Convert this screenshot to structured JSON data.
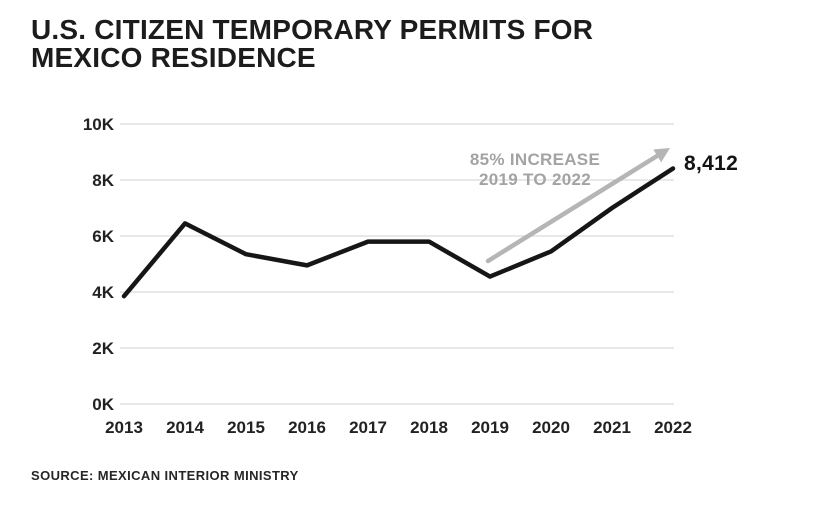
{
  "header": {
    "title_line1": "U.S. CITIZEN TEMPORARY PERMITS FOR",
    "title_line2": "MEXICO RESIDENCE"
  },
  "annotation": {
    "line1": "85% INCREASE",
    "line2": "2019 TO 2022"
  },
  "end_label": "8,412",
  "footer": {
    "source": "SOURCE: MEXICAN INTERIOR MINISTRY"
  },
  "chart_data": {
    "type": "line",
    "title": "U.S. CITIZEN TEMPORARY PERMITS FOR MEXICO RESIDENCE",
    "source": "SOURCE: MEXICAN INTERIOR MINISTRY",
    "categories": [
      "2013",
      "2014",
      "2015",
      "2016",
      "2017",
      "2018",
      "2019",
      "2020",
      "2021",
      "2022"
    ],
    "values": [
      3850,
      6450,
      5350,
      4950,
      5800,
      5800,
      4550,
      5450,
      7000,
      8412
    ],
    "end_label": "8,412",
    "annotation_text": [
      "85% INCREASE",
      "2019 TO 2022"
    ],
    "annotation_refers_to": "rise from 2019 value to 2022 value",
    "y_ticks": [
      {
        "value": 0,
        "label": "0K"
      },
      {
        "value": 2000,
        "label": "2K"
      },
      {
        "value": 4000,
        "label": "4K"
      },
      {
        "value": 6000,
        "label": "6K"
      },
      {
        "value": 8000,
        "label": "8K"
      },
      {
        "value": 10000,
        "label": "10K"
      }
    ],
    "ylim": [
      0,
      10000
    ],
    "grid": "horizontal",
    "legend": "none",
    "colors": {
      "line": "#161616",
      "grid": "#d9d9d9",
      "arrow": "#b5b5b5",
      "annotation_text": "#a3a3a3",
      "axis_text": "#222222",
      "background": "#ffffff"
    }
  }
}
